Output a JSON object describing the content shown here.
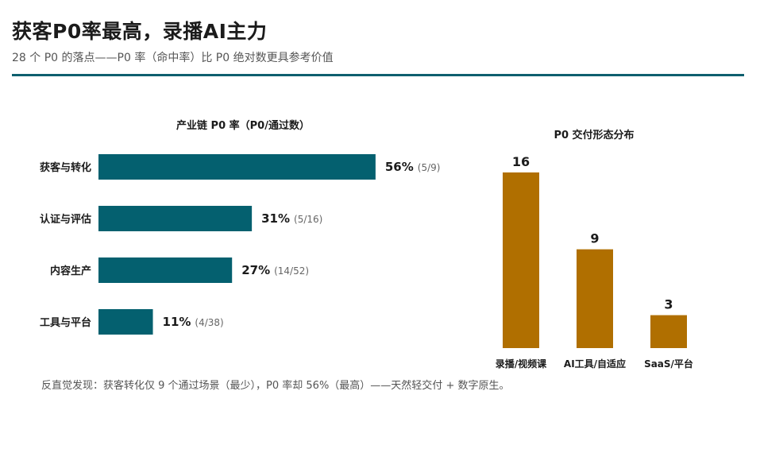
{
  "header": {
    "title": "获客P0率最高，录播AI主力",
    "subtitle": "28 个 P0 的落点——P0 率（命中率）比 P0 绝对数更具参考价值"
  },
  "colors": {
    "teal": "#04606f",
    "gold": "#b06f00",
    "rule": "#0e5f6e"
  },
  "chart_data": [
    {
      "type": "bar",
      "orientation": "horizontal",
      "title": "产业链 P0 率（P0/通过数）",
      "categories": [
        "获客与转化",
        "认证与评估",
        "内容生产",
        "工具与平台"
      ],
      "values": [
        56,
        31,
        27,
        11
      ],
      "value_labels": [
        "56%",
        "31%",
        "27%",
        "11%"
      ],
      "fraction_labels": [
        "(5/9)",
        "(5/16)",
        "(14/52)",
        "(4/38)"
      ],
      "xlim": [
        0,
        100
      ]
    },
    {
      "type": "bar",
      "orientation": "vertical",
      "title": "P0 交付形态分布",
      "categories": [
        "录播/视频课",
        "AI工具/自适应",
        "SaaS/平台"
      ],
      "values": [
        16,
        9,
        3
      ],
      "ylim": [
        0,
        16
      ]
    }
  ],
  "footnote": "反直觉发现：获客转化仅 9 个通过场景（最少），P0 率却 56%（最高）——天然轻交付 + 数字原生。"
}
